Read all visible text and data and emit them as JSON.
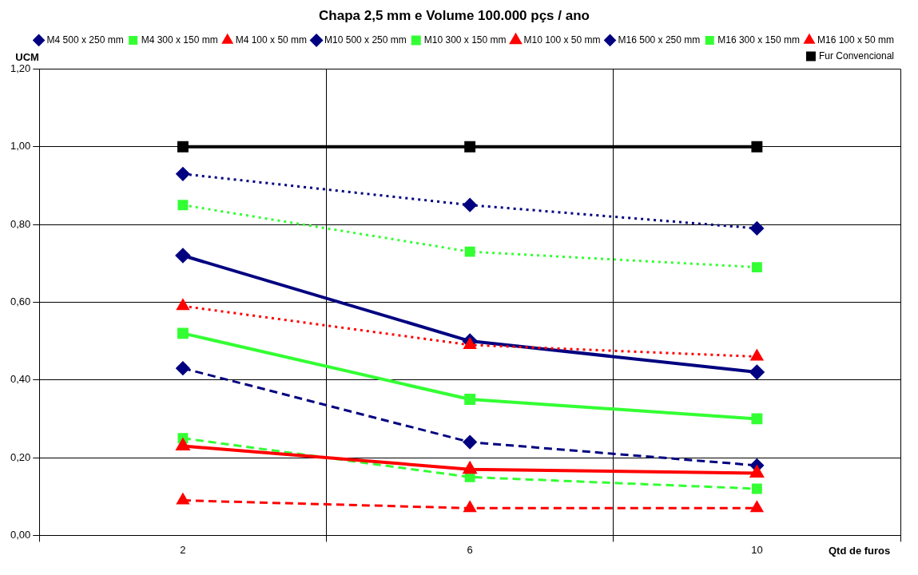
{
  "chart_data": {
    "type": "line",
    "title": "Chapa 2,5 mm e Volume 100.000 pçs / ano",
    "xlabel": "Qtd de furos",
    "ylabel": "UCM",
    "categories": [
      "2",
      "6",
      "10"
    ],
    "series": [
      {
        "name": "M4 500 x 250 mm",
        "color": "#000080",
        "values": [
          0.93,
          0.85,
          0.79
        ],
        "marker": "diamond",
        "line_style": "dotted"
      },
      {
        "name": "M4 300 x 150 mm",
        "color": "#33ff33",
        "values": [
          0.85,
          0.73,
          0.69
        ],
        "marker": "square",
        "line_style": "dotted"
      },
      {
        "name": "M4 100 x 50 mm",
        "color": "#ff0000",
        "values": [
          0.59,
          0.49,
          0.46
        ],
        "marker": "triangle",
        "line_style": "dotted"
      },
      {
        "name": "M10 500 x 250 mm",
        "color": "#000080",
        "values": [
          0.72,
          0.5,
          0.42
        ],
        "marker": "diamond",
        "line_style": "solid"
      },
      {
        "name": "M10 300 x 150 mm",
        "color": "#33ff33",
        "values": [
          0.52,
          0.35,
          0.3
        ],
        "marker": "square",
        "line_style": "solid"
      },
      {
        "name": "M10 100 x 50 mm",
        "color": "#ff0000",
        "values": [
          0.23,
          0.17,
          0.16
        ],
        "marker": "triangle",
        "line_style": "solid"
      },
      {
        "name": "M16 500 x 250 mm",
        "color": "#000080",
        "values": [
          0.43,
          0.24,
          0.18
        ],
        "marker": "diamond",
        "line_style": "dashed"
      },
      {
        "name": "M16 300 x 150 mm",
        "color": "#33ff33",
        "values": [
          0.25,
          0.15,
          0.12
        ],
        "marker": "square",
        "line_style": "dashed"
      },
      {
        "name": "M16 100 x 50 mm",
        "color": "#ff0000",
        "values": [
          0.09,
          0.07,
          0.07
        ],
        "marker": "triangle",
        "line_style": "dashed"
      },
      {
        "name": "Fur Convencional",
        "color": "#000000",
        "values": [
          1.0,
          1.0,
          1.0
        ],
        "marker": "square",
        "line_style": "solid"
      }
    ],
    "ylim": [
      0,
      1.2
    ],
    "yticks": [
      {
        "value": 0,
        "label": "0,00"
      },
      {
        "value": 0.2,
        "label": "0,20"
      },
      {
        "value": 0.4,
        "label": "0,40"
      },
      {
        "value": 0.6,
        "label": "0,60"
      },
      {
        "value": 0.8,
        "label": "0,80"
      },
      {
        "value": 1.0,
        "label": "1,00"
      },
      {
        "value": 1.2,
        "label": "1,20"
      }
    ],
    "grid": true,
    "legend": "top right"
  }
}
